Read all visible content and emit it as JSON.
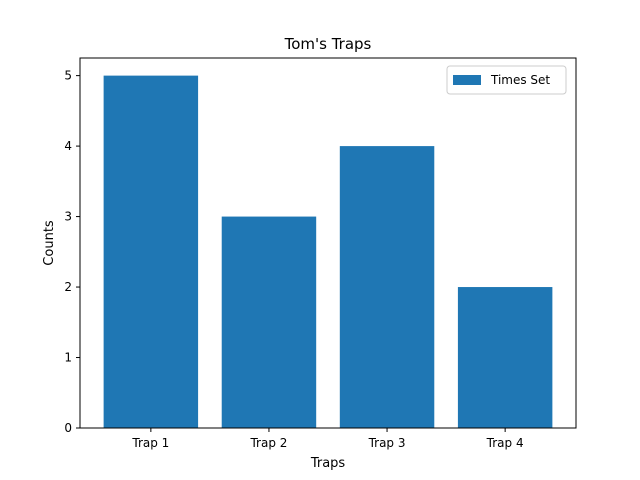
{
  "chart_data": {
    "type": "bar",
    "title": "Tom's Traps",
    "xlabel": "Traps",
    "ylabel": "Counts",
    "categories": [
      "Trap 1",
      "Trap 2",
      "Trap 3",
      "Trap 4"
    ],
    "series": [
      {
        "name": "Times Set",
        "values": [
          5,
          3,
          4,
          2
        ],
        "color": "#1f77b4"
      }
    ],
    "ylim": [
      0,
      5.25
    ],
    "yticks": [
      0,
      1,
      2,
      3,
      4,
      5
    ],
    "grid": false,
    "legend": {
      "position": "top-right"
    }
  }
}
